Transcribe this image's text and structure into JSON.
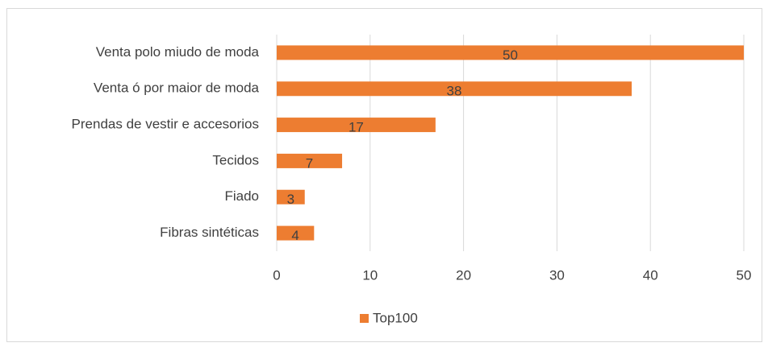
{
  "chart_data": {
    "type": "bar",
    "orientation": "horizontal",
    "categories": [
      "Venta polo miudo de moda",
      "Venta ó por maior de moda",
      "Prendas de vestir e accesorios",
      "Tecidos",
      "Fiado",
      "Fibras sintéticas"
    ],
    "series": [
      {
        "name": "Top100",
        "color": "#ed7d31",
        "values": [
          50,
          38,
          17,
          7,
          3,
          4
        ]
      }
    ],
    "xlim": [
      0,
      50
    ],
    "xticks": [
      0,
      10,
      20,
      30,
      40,
      50
    ],
    "grid": true,
    "legend": "bottom"
  }
}
